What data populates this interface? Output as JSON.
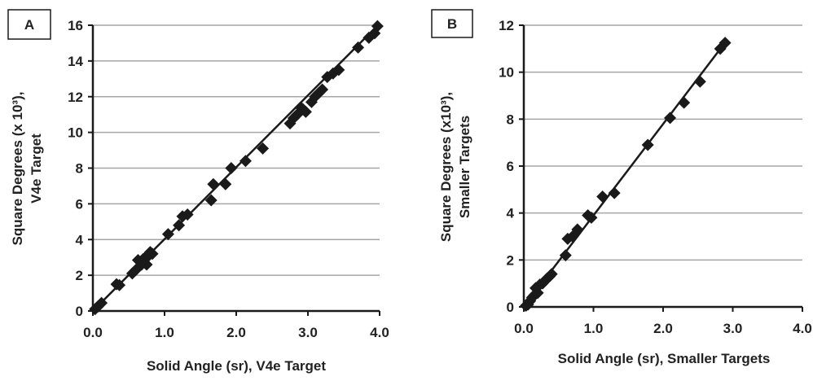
{
  "colors": {
    "marker": "#1a1a1a",
    "line": "#1a1a1a",
    "grid": "#a6a6a6",
    "axis": "#1a1a1a"
  },
  "chart_data": [
    {
      "panel": "A",
      "type": "scatter",
      "xlabel": "Solid Angle (sr), V4e Target",
      "ylabel_lines": [
        "Square Degrees (x 10³),",
        "V4e Target"
      ],
      "xlim": [
        0,
        4
      ],
      "ylim": [
        0,
        16
      ],
      "xticks": [
        "0.0",
        "1.0",
        "2.0",
        "3.0",
        "4.0"
      ],
      "yticks": [
        "0",
        "2",
        "4",
        "6",
        "8",
        "10",
        "12",
        "14",
        "16"
      ],
      "grid": "horizontal",
      "fit_line": [
        [
          0,
          0
        ],
        [
          4.0,
          16.1
        ]
      ],
      "points": [
        [
          0.03,
          0.1
        ],
        [
          0.07,
          0.25
        ],
        [
          0.12,
          0.45
        ],
        [
          0.33,
          1.5
        ],
        [
          0.37,
          1.45
        ],
        [
          0.55,
          2.1
        ],
        [
          0.6,
          2.3
        ],
        [
          0.63,
          2.85
        ],
        [
          0.68,
          2.6
        ],
        [
          0.7,
          2.9
        ],
        [
          0.73,
          3.0
        ],
        [
          0.75,
          2.6
        ],
        [
          0.78,
          3.1
        ],
        [
          0.8,
          3.3
        ],
        [
          0.83,
          3.2
        ],
        [
          1.05,
          4.3
        ],
        [
          1.2,
          4.8
        ],
        [
          1.25,
          5.3
        ],
        [
          1.32,
          5.4
        ],
        [
          1.65,
          6.2
        ],
        [
          1.68,
          7.1
        ],
        [
          1.85,
          7.1
        ],
        [
          1.93,
          8.0
        ],
        [
          2.13,
          8.4
        ],
        [
          2.37,
          9.1
        ],
        [
          2.75,
          10.5
        ],
        [
          2.8,
          10.8
        ],
        [
          2.85,
          11.0
        ],
        [
          2.9,
          11.4
        ],
        [
          2.93,
          11.3
        ],
        [
          2.97,
          11.15
        ],
        [
          3.05,
          11.7
        ],
        [
          3.1,
          12.0
        ],
        [
          3.15,
          12.2
        ],
        [
          3.2,
          12.4
        ],
        [
          3.27,
          13.1
        ],
        [
          3.35,
          13.3
        ],
        [
          3.43,
          13.5
        ],
        [
          3.7,
          14.75
        ],
        [
          3.85,
          15.3
        ],
        [
          3.93,
          15.55
        ],
        [
          3.97,
          15.95
        ]
      ]
    },
    {
      "panel": "B",
      "type": "scatter",
      "xlabel": "Solid Angle (sr), Smaller Targets",
      "ylabel_lines": [
        "Square Degrees (x10³),",
        "Smaller Targets"
      ],
      "xlim": [
        0,
        4
      ],
      "ylim": [
        0,
        12
      ],
      "xticks": [
        "0.0",
        "1.0",
        "2.0",
        "3.0",
        "4.0"
      ],
      "yticks": [
        "0",
        "2",
        "4",
        "6",
        "8",
        "10",
        "12"
      ],
      "grid": "horizontal",
      "fit_line": [
        [
          0,
          0
        ],
        [
          2.9,
          11.3
        ]
      ],
      "points": [
        [
          0.03,
          0.05
        ],
        [
          0.06,
          0.1
        ],
        [
          0.09,
          0.25
        ],
        [
          0.12,
          0.4
        ],
        [
          0.15,
          0.5
        ],
        [
          0.17,
          0.8
        ],
        [
          0.2,
          0.6
        ],
        [
          0.23,
          0.95
        ],
        [
          0.27,
          1.0
        ],
        [
          0.3,
          1.1
        ],
        [
          0.33,
          1.2
        ],
        [
          0.37,
          1.3
        ],
        [
          0.4,
          1.4
        ],
        [
          0.6,
          2.2
        ],
        [
          0.63,
          2.9
        ],
        [
          0.7,
          3.0
        ],
        [
          0.77,
          3.3
        ],
        [
          0.92,
          3.9
        ],
        [
          0.97,
          3.8
        ],
        [
          1.13,
          4.7
        ],
        [
          1.3,
          4.85
        ],
        [
          1.78,
          6.9
        ],
        [
          2.1,
          8.05
        ],
        [
          2.3,
          8.7
        ],
        [
          2.53,
          9.6
        ],
        [
          2.82,
          11.0
        ],
        [
          2.89,
          11.25
        ]
      ]
    }
  ]
}
